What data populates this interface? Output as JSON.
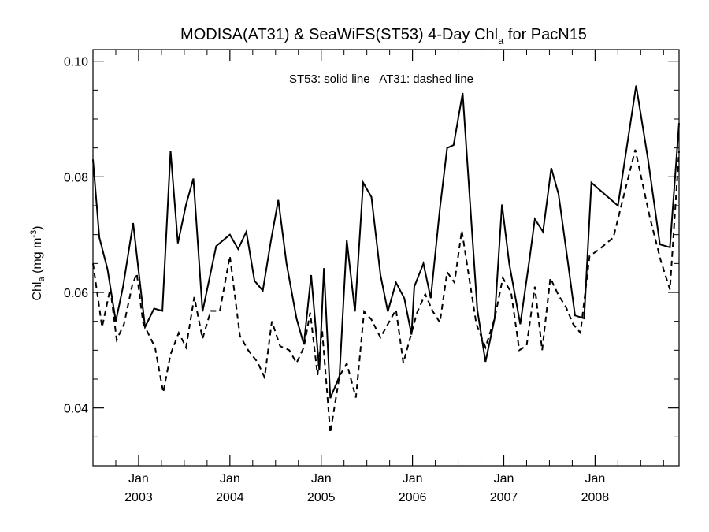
{
  "chart_data": {
    "type": "line",
    "title": {
      "main": "MODISA(AT31) & SeaWiFS(ST53) 4-Day Chl",
      "sub": "a",
      "tail": " for PacN15"
    },
    "ylabel": {
      "main": "Chl",
      "sub": "a",
      "unit": " (mg m",
      "sup": "-3",
      "close": ")"
    },
    "legend_note": "ST53: solid line   AT31: dashed line",
    "xlim": [
      2002.5,
      2008.92
    ],
    "ylim": [
      0.03,
      0.102
    ],
    "y_ticks": [
      {
        "value": 0.04,
        "label": "0.04"
      },
      {
        "value": 0.06,
        "label": "0.06"
      },
      {
        "value": 0.08,
        "label": "0.08"
      },
      {
        "value": 0.1,
        "label": "0.10"
      }
    ],
    "y_minor_ticks": [
      0.035,
      0.045,
      0.05,
      0.055,
      0.065,
      0.07,
      0.075,
      0.085,
      0.09,
      0.095
    ],
    "x_ticks": [
      {
        "value": 2003.0,
        "month": "Jan",
        "year": "2003"
      },
      {
        "value": 2004.0,
        "month": "Jan",
        "year": "2004"
      },
      {
        "value": 2005.0,
        "month": "Jan",
        "year": "2005"
      },
      {
        "value": 2006.0,
        "month": "Jan",
        "year": "2006"
      },
      {
        "value": 2007.0,
        "month": "Jan",
        "year": "2007"
      },
      {
        "value": 2008.0,
        "month": "Jan",
        "year": "2008"
      }
    ],
    "x_minor_ticks": [
      2002.5,
      2002.75,
      2003.25,
      2003.5,
      2003.75,
      2004.25,
      2004.5,
      2004.75,
      2005.25,
      2005.5,
      2005.75,
      2006.25,
      2006.5,
      2006.75,
      2007.25,
      2007.5,
      2007.75,
      2008.25,
      2008.5,
      2008.75
    ],
    "series": [
      {
        "name": "ST53",
        "style": "solid",
        "color": "#000000",
        "points": [
          [
            2002.5,
            0.083
          ],
          [
            2002.57,
            0.0695
          ],
          [
            2002.66,
            0.064
          ],
          [
            2002.75,
            0.055
          ],
          [
            2002.83,
            0.061
          ],
          [
            2002.94,
            0.072
          ],
          [
            2003.07,
            0.054
          ],
          [
            2003.17,
            0.0572
          ],
          [
            2003.26,
            0.0568
          ],
          [
            2003.35,
            0.0845
          ],
          [
            2003.43,
            0.0685
          ],
          [
            2003.52,
            0.0752
          ],
          [
            2003.6,
            0.0797
          ],
          [
            2003.7,
            0.0567
          ],
          [
            2003.85,
            0.068
          ],
          [
            2004.0,
            0.07
          ],
          [
            2004.09,
            0.0675
          ],
          [
            2004.18,
            0.0705
          ],
          [
            2004.27,
            0.062
          ],
          [
            2004.36,
            0.0603
          ],
          [
            2004.45,
            0.069
          ],
          [
            2004.53,
            0.076
          ],
          [
            2004.62,
            0.065
          ],
          [
            2004.73,
            0.0555
          ],
          [
            2004.81,
            0.051
          ],
          [
            2004.89,
            0.063
          ],
          [
            2004.98,
            0.0465
          ],
          [
            2005.03,
            0.0642
          ],
          [
            2005.1,
            0.0417
          ],
          [
            2005.2,
            0.0455
          ],
          [
            2005.28,
            0.069
          ],
          [
            2005.37,
            0.0567
          ],
          [
            2005.46,
            0.079
          ],
          [
            2005.55,
            0.0765
          ],
          [
            2005.65,
            0.063
          ],
          [
            2005.73,
            0.0567
          ],
          [
            2005.82,
            0.0617
          ],
          [
            2005.91,
            0.059
          ],
          [
            2005.99,
            0.0527
          ],
          [
            2006.02,
            0.061
          ],
          [
            2006.12,
            0.065
          ],
          [
            2006.2,
            0.059
          ],
          [
            2006.3,
            0.0745
          ],
          [
            2006.38,
            0.085
          ],
          [
            2006.45,
            0.0855
          ],
          [
            2006.55,
            0.0945
          ],
          [
            2006.71,
            0.057
          ],
          [
            2006.8,
            0.048
          ],
          [
            2006.9,
            0.0555
          ],
          [
            2006.98,
            0.0752
          ],
          [
            2007.06,
            0.065
          ],
          [
            2007.18,
            0.0545
          ],
          [
            2007.28,
            0.0655
          ],
          [
            2007.34,
            0.0727
          ],
          [
            2007.43,
            0.0705
          ],
          [
            2007.52,
            0.0815
          ],
          [
            2007.6,
            0.077
          ],
          [
            2007.7,
            0.0655
          ],
          [
            2007.78,
            0.056
          ],
          [
            2007.88,
            0.0555
          ],
          [
            2007.96,
            0.079
          ],
          [
            2008.25,
            0.075
          ],
          [
            2008.45,
            0.0958
          ],
          [
            2008.58,
            0.083
          ],
          [
            2008.71,
            0.0683
          ],
          [
            2008.82,
            0.0678
          ],
          [
            2008.92,
            0.0893
          ]
        ]
      },
      {
        "name": "AT31",
        "style": "dashed",
        "color": "#000000",
        "points": [
          [
            2002.5,
            0.065
          ],
          [
            2002.6,
            0.054
          ],
          [
            2002.69,
            0.0607
          ],
          [
            2002.76,
            0.0518
          ],
          [
            2002.84,
            0.0545
          ],
          [
            2002.93,
            0.0612
          ],
          [
            2002.98,
            0.0633
          ],
          [
            2003.05,
            0.0547
          ],
          [
            2003.18,
            0.0505
          ],
          [
            2003.27,
            0.0427
          ],
          [
            2003.35,
            0.0493
          ],
          [
            2003.44,
            0.053
          ],
          [
            2003.52,
            0.0505
          ],
          [
            2003.61,
            0.0592
          ],
          [
            2003.7,
            0.052
          ],
          [
            2003.79,
            0.0568
          ],
          [
            2003.89,
            0.0568
          ],
          [
            2004.0,
            0.0663
          ],
          [
            2004.11,
            0.0525
          ],
          [
            2004.2,
            0.05
          ],
          [
            2004.3,
            0.048
          ],
          [
            2004.38,
            0.0453
          ],
          [
            2004.46,
            0.055
          ],
          [
            2004.55,
            0.0507
          ],
          [
            2004.65,
            0.05
          ],
          [
            2004.73,
            0.0478
          ],
          [
            2004.81,
            0.0505
          ],
          [
            2004.88,
            0.0565
          ],
          [
            2004.96,
            0.0457
          ],
          [
            2005.01,
            0.0535
          ],
          [
            2005.1,
            0.0357
          ],
          [
            2005.2,
            0.0455
          ],
          [
            2005.28,
            0.0477
          ],
          [
            2005.38,
            0.0418
          ],
          [
            2005.47,
            0.0567
          ],
          [
            2005.55,
            0.0553
          ],
          [
            2005.65,
            0.0522
          ],
          [
            2005.73,
            0.0545
          ],
          [
            2005.82,
            0.057
          ],
          [
            2005.9,
            0.0478
          ],
          [
            2005.99,
            0.053
          ],
          [
            2006.05,
            0.0565
          ],
          [
            2006.14,
            0.0597
          ],
          [
            2006.22,
            0.0568
          ],
          [
            2006.3,
            0.0548
          ],
          [
            2006.38,
            0.0635
          ],
          [
            2006.46,
            0.0617
          ],
          [
            2006.54,
            0.0707
          ],
          [
            2006.7,
            0.0545
          ],
          [
            2006.8,
            0.0505
          ],
          [
            2006.9,
            0.0555
          ],
          [
            2006.99,
            0.0625
          ],
          [
            2007.08,
            0.06
          ],
          [
            2007.17,
            0.05
          ],
          [
            2007.25,
            0.0508
          ],
          [
            2007.34,
            0.061
          ],
          [
            2007.42,
            0.05
          ],
          [
            2007.51,
            0.0625
          ],
          [
            2007.6,
            0.0595
          ],
          [
            2007.68,
            0.0575
          ],
          [
            2007.76,
            0.0545
          ],
          [
            2007.84,
            0.053
          ],
          [
            2007.94,
            0.0663
          ],
          [
            2008.05,
            0.0675
          ],
          [
            2008.2,
            0.0695
          ],
          [
            2008.44,
            0.0847
          ],
          [
            2008.6,
            0.073
          ],
          [
            2008.72,
            0.0655
          ],
          [
            2008.82,
            0.0605
          ],
          [
            2008.92,
            0.0845
          ]
        ]
      }
    ]
  }
}
